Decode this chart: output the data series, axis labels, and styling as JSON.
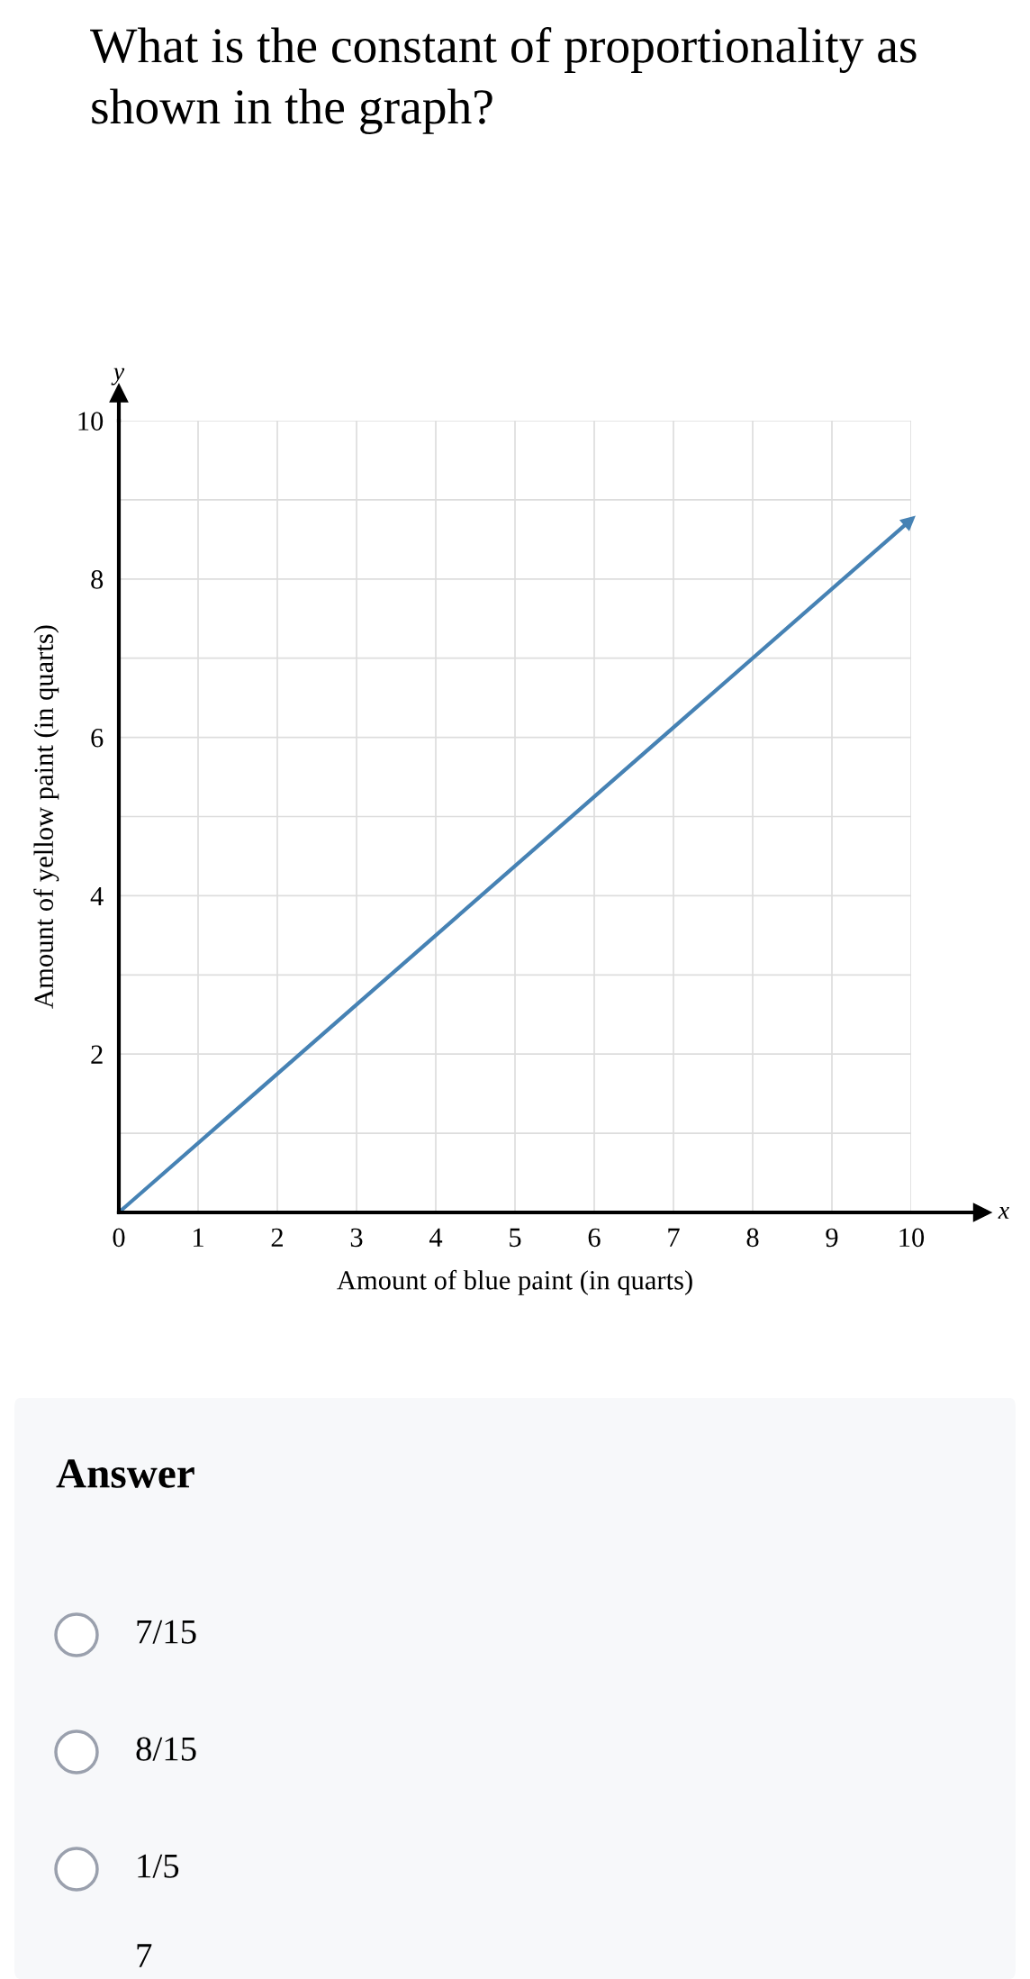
{
  "chart_data": {
    "type": "line",
    "title": "What is the constant of proportionality as shown in the graph?",
    "xlabel": "Amount of blue paint (in quarts)",
    "ylabel": "Amount of yellow paint (in quarts)",
    "x": [
      0,
      10
    ],
    "series": [
      {
        "color": "#4682b4",
        "values": [
          0,
          8.75
        ]
      }
    ],
    "xlim": [
      0,
      10
    ],
    "ylim": [
      0,
      10
    ],
    "xticks": [
      0,
      1,
      2,
      3,
      4,
      5,
      6,
      7,
      8,
      9,
      10
    ],
    "yticks": [
      {
        "value": 1,
        "label": null
      },
      2,
      {
        "value": 3,
        "label": null
      },
      4,
      {
        "value": 5,
        "label": null
      },
      6,
      {
        "value": 7,
        "label": null
      },
      8,
      {
        "value": 9,
        "label": null
      },
      10
    ],
    "grid": true,
    "line_style": "solid",
    "annotations": [
      "x",
      "y",
      "Answer",
      "7/15",
      "8/15",
      "1/5",
      "7"
    ]
  }
}
